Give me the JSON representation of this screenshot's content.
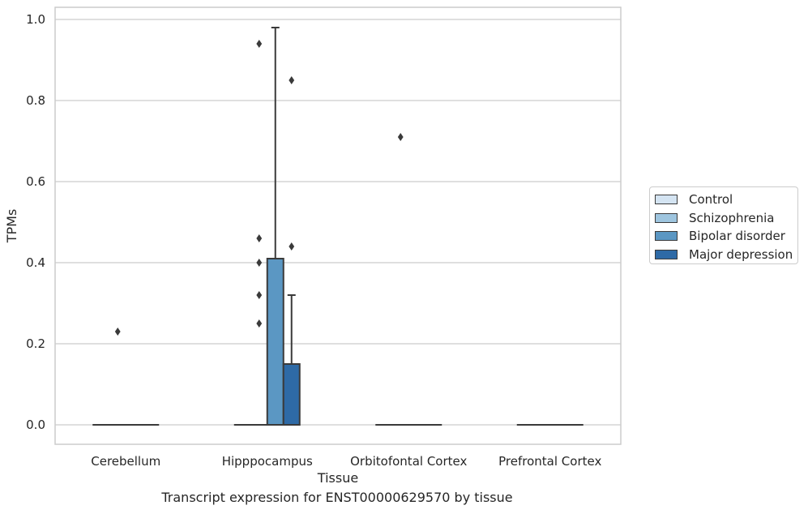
{
  "chart_data": {
    "type": "box",
    "title": "",
    "xlabel": "Tissue",
    "ylabel": "TPMs",
    "caption": "Transcript expression for ENST00000629570 by tissue",
    "ylim": [
      -0.045,
      1.03
    ],
    "yticks": [
      "0.0",
      "0.2",
      "0.4",
      "0.6",
      "0.8",
      "1.0"
    ],
    "grid": true,
    "legend_position": "right",
    "categories": [
      "Cerebellum",
      "Hipppocampus",
      "Orbitofontal Cortex",
      "Prefrontal Cortex"
    ],
    "series": [
      {
        "name": "Control",
        "color": "#d4e4f2",
        "boxes": [
          {
            "q1": 0,
            "median": 0,
            "q3": 0,
            "whisker_low": 0,
            "whisker_high": 0,
            "outliers": []
          },
          {
            "q1": 0,
            "median": 0,
            "q3": 0,
            "whisker_low": 0,
            "whisker_high": 0,
            "outliers": []
          },
          {
            "q1": 0,
            "median": 0,
            "q3": 0,
            "whisker_low": 0,
            "whisker_high": 0,
            "outliers": []
          },
          {
            "q1": 0,
            "median": 0,
            "q3": 0,
            "whisker_low": 0,
            "whisker_high": 0,
            "outliers": []
          }
        ]
      },
      {
        "name": "Schizophrenia",
        "color": "#9ec5df",
        "boxes": [
          {
            "q1": 0,
            "median": 0,
            "q3": 0,
            "whisker_low": 0,
            "whisker_high": 0,
            "outliers": [
              0.23
            ]
          },
          {
            "q1": 0,
            "median": 0,
            "q3": 0,
            "whisker_low": 0,
            "whisker_high": 0,
            "outliers": [
              0.94,
              0.46,
              0.4,
              0.32,
              0.25
            ]
          },
          {
            "q1": 0,
            "median": 0,
            "q3": 0,
            "whisker_low": 0,
            "whisker_high": 0,
            "outliers": [
              0.71
            ]
          },
          {
            "q1": 0,
            "median": 0,
            "q3": 0,
            "whisker_low": 0,
            "whisker_high": 0,
            "outliers": []
          }
        ]
      },
      {
        "name": "Bipolar disorder",
        "color": "#5b97c3",
        "boxes": [
          {
            "q1": 0,
            "median": 0,
            "q3": 0,
            "whisker_low": 0,
            "whisker_high": 0,
            "outliers": []
          },
          {
            "q1": 0,
            "median": 0,
            "q3": 0.41,
            "whisker_low": 0,
            "whisker_high": 0.98,
            "outliers": []
          },
          {
            "q1": 0,
            "median": 0,
            "q3": 0,
            "whisker_low": 0,
            "whisker_high": 0,
            "outliers": []
          },
          {
            "q1": 0,
            "median": 0,
            "q3": 0,
            "whisker_low": 0,
            "whisker_high": 0,
            "outliers": []
          }
        ]
      },
      {
        "name": "Major depression",
        "color": "#2e6aa6",
        "boxes": [
          {
            "q1": 0,
            "median": 0,
            "q3": 0,
            "whisker_low": 0,
            "whisker_high": 0,
            "outliers": []
          },
          {
            "q1": 0,
            "median": 0,
            "q3": 0.15,
            "whisker_low": 0,
            "whisker_high": 0.32,
            "outliers": [
              0.85,
              0.44
            ]
          },
          {
            "q1": 0,
            "median": 0,
            "q3": 0,
            "whisker_low": 0,
            "whisker_high": 0,
            "outliers": []
          },
          {
            "q1": 0,
            "median": 0,
            "q3": 0,
            "whisker_low": 0,
            "whisker_high": 0,
            "outliers": []
          }
        ]
      }
    ]
  }
}
